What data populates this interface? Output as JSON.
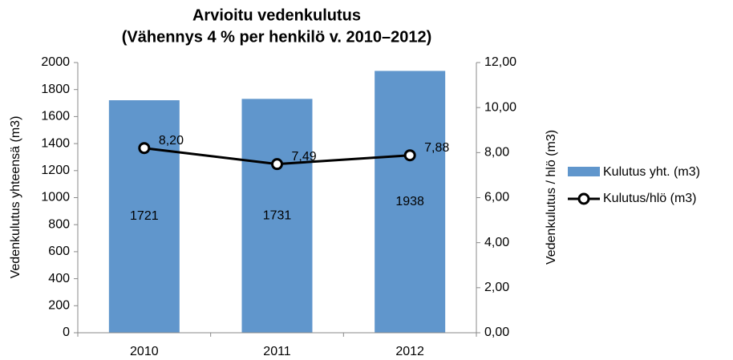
{
  "chart_data": {
    "type": "bar-line",
    "title": "Arvioitu vedenkulutus",
    "subtitle": "(Vähennys 4 % per henkilö v. 2010–2012)",
    "ylabel": "Vedenkulutus yhteensä (m3)",
    "y2label": "Vedenkulutus / hlö (m3)",
    "categories": [
      "2010",
      "2011",
      "2012"
    ],
    "series": [
      {
        "name": "Kulutus yht. (m3)",
        "type": "bar",
        "color": "#6096cc",
        "values": [
          1721,
          1731,
          1938
        ]
      },
      {
        "name": "Kulutus/hlö (m3)",
        "type": "line",
        "axis": "y2",
        "color": "#000000",
        "values": [
          8.2,
          7.49,
          7.88
        ],
        "value_labels": [
          "8,20",
          "7,49",
          "7,88"
        ]
      }
    ],
    "ylim": [
      0,
      2000
    ],
    "yticks": [
      0,
      200,
      400,
      600,
      800,
      1000,
      1200,
      1400,
      1600,
      1800,
      2000
    ],
    "y2lim": [
      0,
      12
    ],
    "y2ticks": [
      {
        "value": 0,
        "label": "0,00"
      },
      {
        "value": 2,
        "label": "2,00"
      },
      {
        "value": 4,
        "label": "4,00"
      },
      {
        "value": 6,
        "label": "6,00"
      },
      {
        "value": 8,
        "label": "8,00"
      },
      {
        "value": 10,
        "label": "10,00"
      },
      {
        "value": 12,
        "label": "12,00"
      }
    ],
    "grid": false,
    "legend": "right"
  }
}
